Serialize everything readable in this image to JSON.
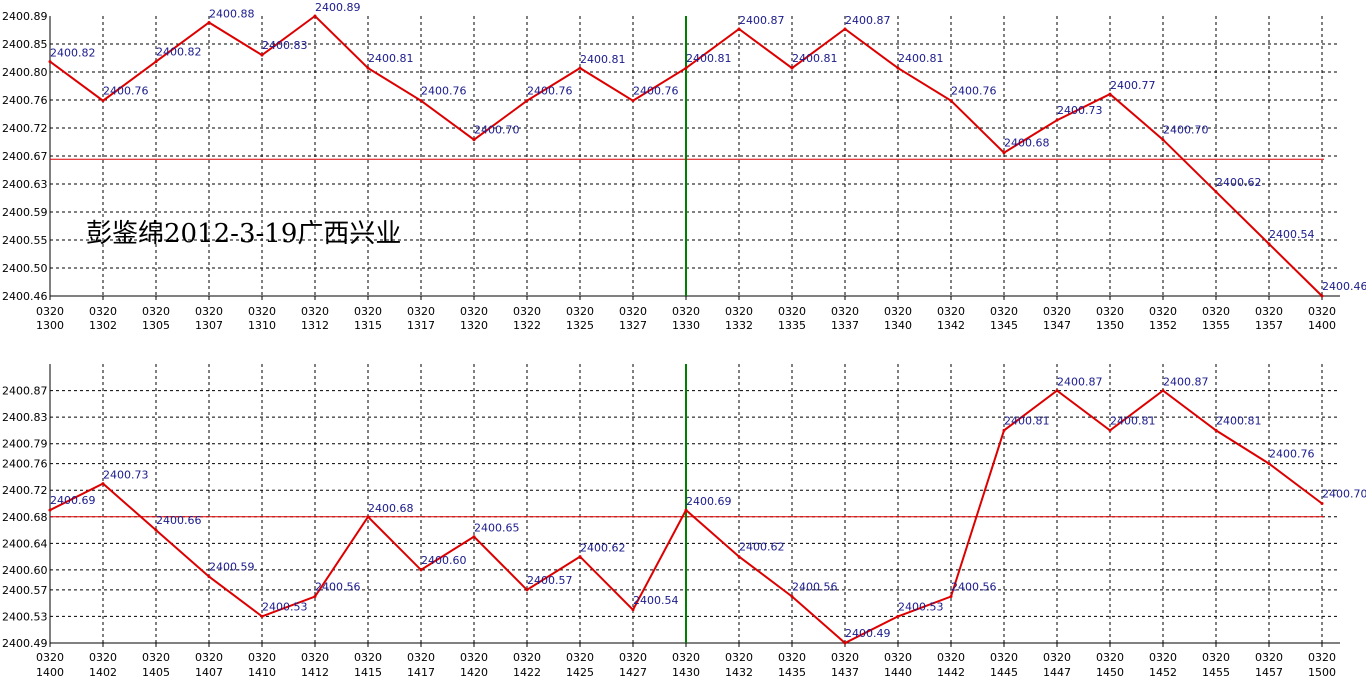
{
  "chart_data": [
    {
      "type": "line",
      "annotation": "彭鉴绵2012-3-19广西兴业",
      "ylim": [
        2400.46,
        2400.89
      ],
      "yticks": [
        "2400.89",
        "2400.85",
        "2400.80",
        "2400.76",
        "2400.72",
        "2400.67",
        "2400.63",
        "2400.59",
        "2400.55",
        "2400.50",
        "2400.46"
      ],
      "ref_line": 2400.67,
      "vline_category": "0320 1330",
      "grid": true,
      "colors": {
        "line": "#dd0000",
        "ref": "#dd0000",
        "vline": "#008000",
        "grid": "#000000",
        "label": "#1a1a8c"
      },
      "categories": [
        [
          "0320",
          "1300"
        ],
        [
          "0320",
          "1302"
        ],
        [
          "0320",
          "1305"
        ],
        [
          "0320",
          "1307"
        ],
        [
          "0320",
          "1310"
        ],
        [
          "0320",
          "1312"
        ],
        [
          "0320",
          "1315"
        ],
        [
          "0320",
          "1317"
        ],
        [
          "0320",
          "1320"
        ],
        [
          "0320",
          "1322"
        ],
        [
          "0320",
          "1325"
        ],
        [
          "0320",
          "1327"
        ],
        [
          "0320",
          "1330"
        ],
        [
          "0320",
          "1332"
        ],
        [
          "0320",
          "1335"
        ],
        [
          "0320",
          "1337"
        ],
        [
          "0320",
          "1340"
        ],
        [
          "0320",
          "1342"
        ],
        [
          "0320",
          "1345"
        ],
        [
          "0320",
          "1347"
        ],
        [
          "0320",
          "1350"
        ],
        [
          "0320",
          "1352"
        ],
        [
          "0320",
          "1355"
        ],
        [
          "0320",
          "1357"
        ],
        [
          "0320",
          "1400"
        ]
      ],
      "values": [
        2400.82,
        2400.76,
        2400.82,
        2400.88,
        2400.83,
        2400.89,
        2400.81,
        2400.76,
        2400.7,
        2400.76,
        2400.81,
        2400.76,
        2400.81,
        2400.87,
        2400.81,
        2400.87,
        2400.81,
        2400.76,
        2400.68,
        2400.73,
        2400.77,
        2400.7,
        2400.62,
        2400.54,
        2400.46
      ],
      "labels": [
        "2400.82",
        "2400.76",
        "2400.82",
        "2400.88",
        "2400.83",
        "2400.89",
        "2400.81",
        "2400.76",
        "2400.70",
        "2400.76",
        "2400.81",
        "2400.76",
        "2400.81",
        "2400.87",
        "2400.81",
        "2400.87",
        "2400.81",
        "2400.76",
        "2400.68",
        "2400.73",
        "2400.77",
        "2400.70",
        "2400.62",
        "2400.54",
        "2400.46"
      ]
    },
    {
      "type": "line",
      "ylim": [
        2400.49,
        2400.91
      ],
      "yticks": [
        "2400.87",
        "2400.83",
        "2400.79",
        "2400.76",
        "2400.72",
        "2400.68",
        "2400.64",
        "2400.60",
        "2400.57",
        "2400.53",
        "2400.49"
      ],
      "ytick_values": [
        2400.87,
        2400.83,
        2400.79,
        2400.76,
        2400.72,
        2400.68,
        2400.64,
        2400.6,
        2400.57,
        2400.53,
        2400.49
      ],
      "ref_line": 2400.68,
      "vline_category": "0320 1430",
      "grid": true,
      "colors": {
        "line": "#dd0000",
        "ref": "#dd0000",
        "vline": "#008000",
        "grid": "#000000",
        "label": "#1a1a8c"
      },
      "categories": [
        [
          "0320",
          "1400"
        ],
        [
          "0320",
          "1402"
        ],
        [
          "0320",
          "1405"
        ],
        [
          "0320",
          "1407"
        ],
        [
          "0320",
          "1410"
        ],
        [
          "0320",
          "1412"
        ],
        [
          "0320",
          "1415"
        ],
        [
          "0320",
          "1417"
        ],
        [
          "0320",
          "1420"
        ],
        [
          "0320",
          "1422"
        ],
        [
          "0320",
          "1425"
        ],
        [
          "0320",
          "1427"
        ],
        [
          "0320",
          "1430"
        ],
        [
          "0320",
          "1432"
        ],
        [
          "0320",
          "1435"
        ],
        [
          "0320",
          "1437"
        ],
        [
          "0320",
          "1440"
        ],
        [
          "0320",
          "1442"
        ],
        [
          "0320",
          "1445"
        ],
        [
          "0320",
          "1447"
        ],
        [
          "0320",
          "1450"
        ],
        [
          "0320",
          "1452"
        ],
        [
          "0320",
          "1455"
        ],
        [
          "0320",
          "1457"
        ],
        [
          "0320",
          "1500"
        ]
      ],
      "values": [
        2400.69,
        2400.73,
        2400.66,
        2400.59,
        2400.53,
        2400.56,
        2400.68,
        2400.6,
        2400.65,
        2400.57,
        2400.62,
        2400.54,
        2400.69,
        2400.62,
        2400.56,
        2400.49,
        2400.53,
        2400.56,
        2400.81,
        2400.87,
        2400.81,
        2400.87,
        2400.81,
        2400.76,
        2400.7
      ],
      "labels": [
        "2400.69",
        "2400.73",
        "2400.66",
        "2400.59",
        "2400.53",
        "2400.56",
        "2400.68",
        "2400.60",
        "2400.65",
        "2400.57",
        "2400.62",
        "2400.54",
        "2400.69",
        "2400.62",
        "2400.56",
        "2400.49",
        "2400.53",
        "2400.56",
        "2400.81",
        "2400.87",
        "2400.81",
        "2400.87",
        "2400.81",
        "2400.76",
        "2400.70"
      ]
    }
  ]
}
